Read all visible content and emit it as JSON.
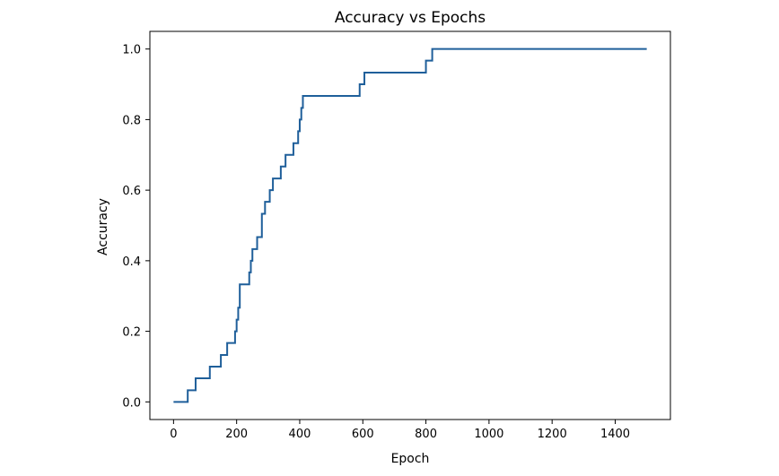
{
  "chart_data": {
    "type": "line",
    "title": "Accuracy vs Epochs",
    "xlabel": "Epoch",
    "ylabel": "Accuracy",
    "xlim": [
      -75,
      1575
    ],
    "ylim": [
      -0.05,
      1.05
    ],
    "xticks": [
      0,
      200,
      400,
      600,
      800,
      1000,
      1200,
      1400
    ],
    "xtick_labels": [
      "0",
      "200",
      "400",
      "600",
      "800",
      "1000",
      "1200",
      "1400"
    ],
    "yticks": [
      0.0,
      0.2,
      0.4,
      0.6,
      0.8,
      1.0
    ],
    "ytick_labels": [
      "0.0",
      "0.2",
      "0.4",
      "0.6",
      "0.8",
      "1.0"
    ],
    "grid": false,
    "series": [
      {
        "color": "#1f5f9a",
        "step": "post",
        "x": [
          0,
          45,
          70,
          115,
          150,
          170,
          195,
          200,
          205,
          210,
          240,
          245,
          250,
          265,
          280,
          290,
          305,
          315,
          340,
          355,
          380,
          395,
          400,
          405,
          410,
          420,
          440,
          590,
          605,
          800,
          820,
          1500
        ],
        "y": [
          0.0,
          0.033,
          0.067,
          0.1,
          0.133,
          0.167,
          0.2,
          0.233,
          0.267,
          0.333,
          0.367,
          0.4,
          0.433,
          0.467,
          0.533,
          0.567,
          0.6,
          0.633,
          0.667,
          0.7,
          0.733,
          0.767,
          0.8,
          0.833,
          0.867,
          0.867,
          0.867,
          0.9,
          0.933,
          0.967,
          1.0,
          1.0
        ]
      }
    ]
  }
}
